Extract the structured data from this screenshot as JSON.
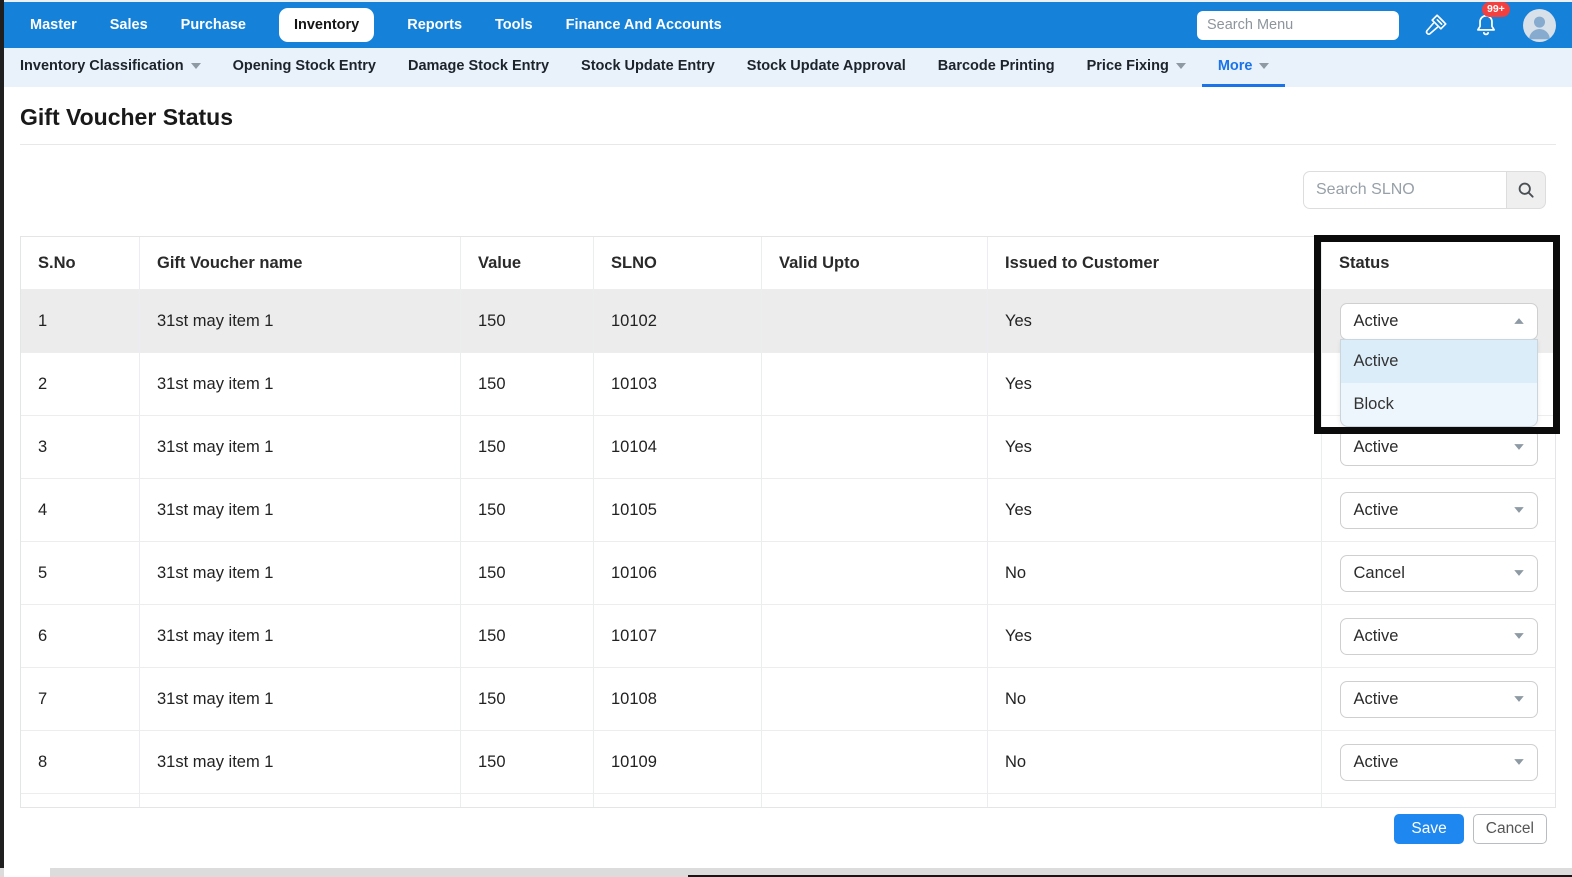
{
  "colors": {
    "topbar_blue": "#1581d8",
    "link_blue": "#1a73e8",
    "save_blue": "#1e87f0",
    "badge_red": "#f23f3f",
    "subnav_bg": "#e9f1fa",
    "row_highlight": "#ececec",
    "menu_bg": "#edf6fc",
    "menu_selected_bg": "#dcedfa",
    "highlight_border": "#0b0b0b"
  },
  "top_nav": {
    "search_placeholder": "Search Menu",
    "notification_badge": "99+",
    "items": [
      {
        "label": "Master"
      },
      {
        "label": "Sales"
      },
      {
        "label": "Purchase"
      },
      {
        "label": "Inventory",
        "active": true
      },
      {
        "label": "Reports"
      },
      {
        "label": "Tools"
      },
      {
        "label": "Finance And Accounts"
      }
    ]
  },
  "sub_nav": {
    "items": [
      {
        "label": "Inventory Classification",
        "dropdown": true
      },
      {
        "label": "Opening Stock Entry"
      },
      {
        "label": "Damage Stock Entry"
      },
      {
        "label": "Stock Update Entry"
      },
      {
        "label": "Stock Update Approval"
      },
      {
        "label": "Barcode Printing"
      },
      {
        "label": "Price Fixing",
        "dropdown": true
      },
      {
        "label": "More",
        "dropdown": true,
        "active": true
      }
    ]
  },
  "page": {
    "title": "Gift Voucher Status",
    "search_placeholder": "Search SLNO"
  },
  "table": {
    "columns": [
      "S.No",
      "Gift Voucher name",
      "Value",
      "SLNO",
      "Valid Upto",
      "Issued to Customer",
      "Status"
    ],
    "status_options": [
      "Active",
      "Block"
    ],
    "rows": [
      {
        "sno": "1",
        "name": "31st may item 1",
        "value": "150",
        "slno": "10102",
        "valid_upto": "",
        "issued": "Yes",
        "status": "Active",
        "status_open": true
      },
      {
        "sno": "2",
        "name": "31st may item 1",
        "value": "150",
        "slno": "10103",
        "valid_upto": "",
        "issued": "Yes",
        "status": ""
      },
      {
        "sno": "3",
        "name": "31st may item 1",
        "value": "150",
        "slno": "10104",
        "valid_upto": "",
        "issued": "Yes",
        "status": "Active"
      },
      {
        "sno": "4",
        "name": "31st may item 1",
        "value": "150",
        "slno": "10105",
        "valid_upto": "",
        "issued": "Yes",
        "status": "Active"
      },
      {
        "sno": "5",
        "name": "31st may item 1",
        "value": "150",
        "slno": "10106",
        "valid_upto": "",
        "issued": "No",
        "status": "Cancel"
      },
      {
        "sno": "6",
        "name": "31st may item 1",
        "value": "150",
        "slno": "10107",
        "valid_upto": "",
        "issued": "Yes",
        "status": "Active"
      },
      {
        "sno": "7",
        "name": "31st may item 1",
        "value": "150",
        "slno": "10108",
        "valid_upto": "",
        "issued": "No",
        "status": "Active"
      },
      {
        "sno": "8",
        "name": "31st may item 1",
        "value": "150",
        "slno": "10109",
        "valid_upto": "",
        "issued": "No",
        "status": "Active"
      }
    ]
  },
  "footer": {
    "save_label": "Save",
    "cancel_label": "Cancel"
  }
}
